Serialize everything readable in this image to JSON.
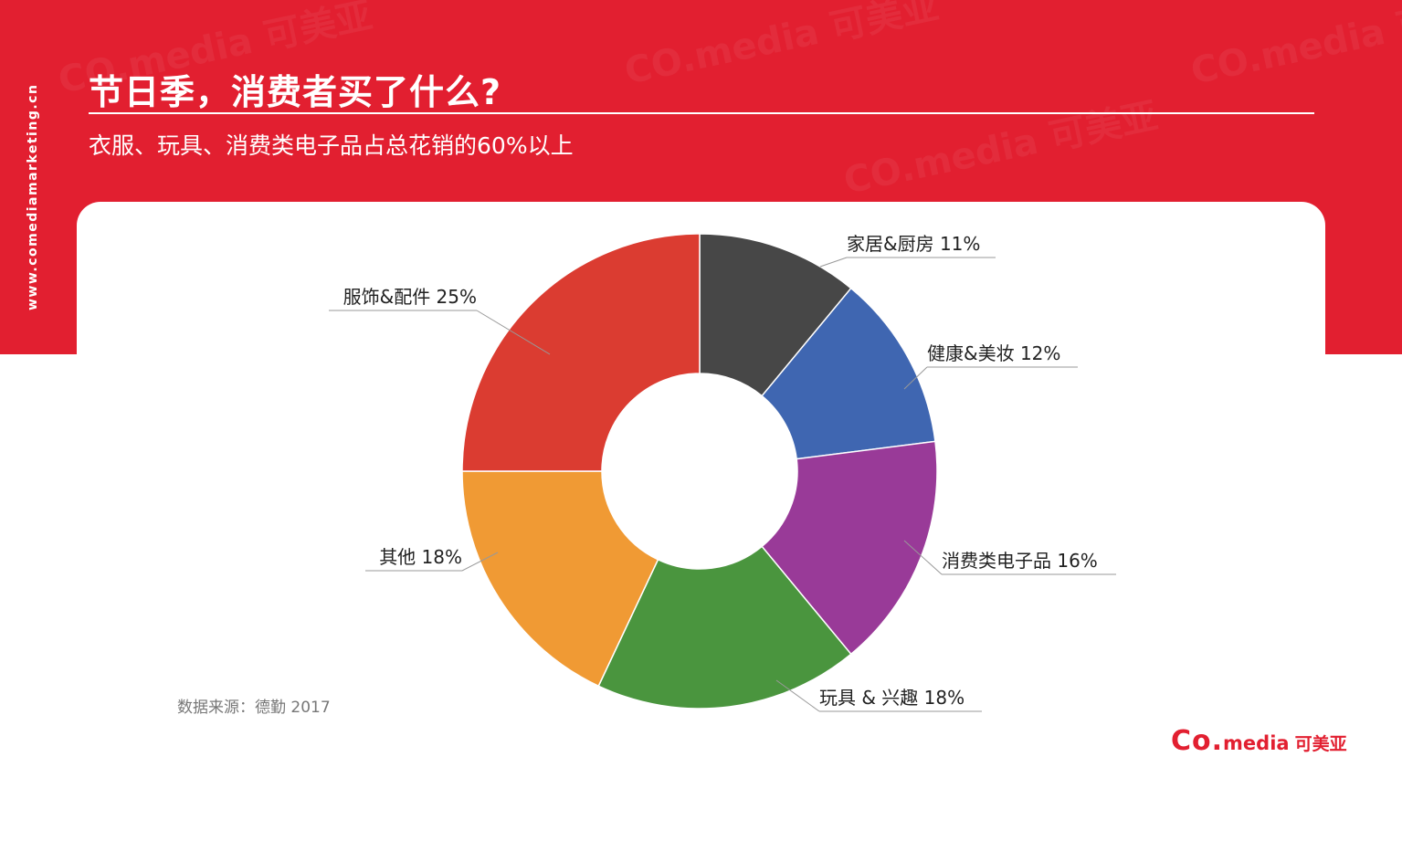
{
  "header": {
    "side_url": "www.comediamarketing.cn",
    "title": "节日季，消费者买了什么?",
    "subtitle": "衣服、玩具、消费类电子品占总花销的60%以上"
  },
  "footer": {
    "source": "数据来源：德勤 2017",
    "brand_co": "Co.",
    "brand_media": "media",
    "brand_cn": "可美亚"
  },
  "colors": {
    "brand_red": "#e21f30",
    "card": "#ffffff"
  },
  "chart_data": {
    "type": "pie",
    "donut": true,
    "categories": [
      "家居&厨房",
      "健康&美妆",
      "消费类电子品",
      "玩具 & 兴趣",
      "其他",
      "服饰&配件"
    ],
    "values": [
      11,
      12,
      16,
      18,
      18,
      25
    ],
    "labels": [
      "家居&厨房 11%",
      "健康&美妆 12%",
      "消费类电子品 16%",
      "玩具 & 兴趣 18%",
      "其他 18%",
      "服饰&配件 25%"
    ],
    "colors": [
      "#474747",
      "#3f66b1",
      "#993a98",
      "#4a953e",
      "#f09a34",
      "#db3c31"
    ],
    "start": "12 o'clock",
    "direction": "clockwise"
  }
}
